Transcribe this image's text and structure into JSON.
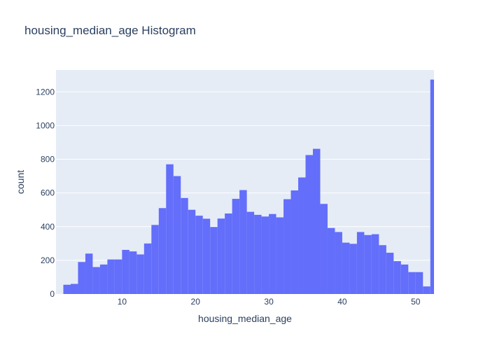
{
  "colors": {
    "bar": "#636efa",
    "plot_background": "#e5ecf6",
    "gridline": "#ffffff",
    "text": "#2a3f5f"
  },
  "chart_data": {
    "type": "bar",
    "title": "housing_median_age Histogram",
    "xlabel": "housing_median_age",
    "ylabel": "count",
    "xlim": [
      1,
      52.5
    ],
    "ylim": [
      0,
      1330
    ],
    "x_ticks": [
      10,
      20,
      30,
      40,
      50
    ],
    "y_ticks": [
      0,
      200,
      400,
      600,
      800,
      1000,
      1200
    ],
    "grid": true,
    "bin_width": 1,
    "bin_start": 1,
    "values": [
      0,
      55,
      60,
      190,
      240,
      160,
      175,
      205,
      205,
      262,
      253,
      235,
      300,
      410,
      510,
      770,
      700,
      570,
      500,
      465,
      447,
      398,
      448,
      478,
      565,
      617,
      488,
      470,
      460,
      475,
      455,
      563,
      615,
      692,
      825,
      862,
      535,
      392,
      368,
      305,
      298,
      368,
      350,
      355,
      290,
      245,
      195,
      175,
      130,
      130,
      45,
      1273
    ]
  }
}
